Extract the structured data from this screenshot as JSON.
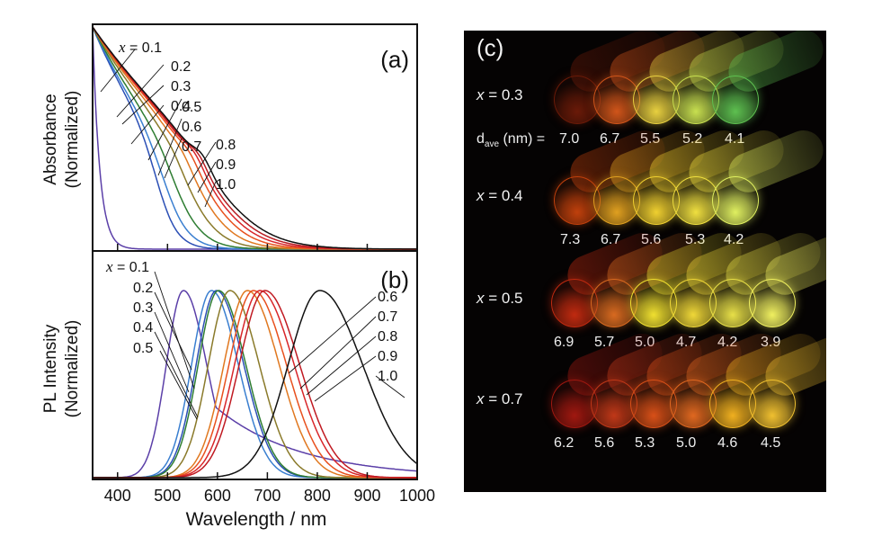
{
  "chart_data": [
    {
      "panel": "(a)",
      "type": "line",
      "title": "",
      "xlabel": "Wavelength / nm",
      "ylabel": "Absorbance (Normalized)",
      "xlim": [
        350,
        1000
      ],
      "ylim": [
        0,
        1
      ],
      "xticks": [
        400,
        500,
        600,
        700,
        800,
        900,
        1000
      ],
      "grid": false,
      "legend_prefix": "x =",
      "series": [
        {
          "name": "0.1",
          "color": "#5b3fa8",
          "edge_nm": 400,
          "shoulder": 0
        },
        {
          "name": "0.2",
          "color": "#2b4fb5",
          "edge_nm": 480,
          "shoulder": 0
        },
        {
          "name": "0.3",
          "color": "#3a7fd0",
          "edge_nm": 495,
          "shoulder": 0
        },
        {
          "name": "0.4",
          "color": "#2e7d32",
          "edge_nm": 515,
          "shoulder": 0.05
        },
        {
          "name": "0.5",
          "color": "#8a7a2a",
          "edge_nm": 540,
          "shoulder": 0.1
        },
        {
          "name": "0.6",
          "color": "#e07820",
          "edge_nm": 560,
          "shoulder": 0.15
        },
        {
          "name": "0.7",
          "color": "#e8501e",
          "edge_nm": 575,
          "shoulder": 0.2
        },
        {
          "name": "0.8",
          "color": "#d8262a",
          "edge_nm": 585,
          "shoulder": 0.25
        },
        {
          "name": "0.9",
          "color": "#b81c22",
          "edge_nm": 592,
          "shoulder": 0.28
        },
        {
          "name": "1.0",
          "color": "#111111",
          "edge_nm": 600,
          "shoulder": 0.3
        }
      ]
    },
    {
      "panel": "(b)",
      "type": "line",
      "title": "",
      "xlabel": "Wavelength / nm",
      "ylabel": "PL Intensity (Normalized)",
      "xlim": [
        350,
        1000
      ],
      "ylim": [
        0,
        1
      ],
      "xticks": [
        400,
        500,
        600,
        700,
        800,
        900,
        1000
      ],
      "grid": false,
      "legend_prefix": "x =",
      "series": [
        {
          "name": "0.1",
          "color": "#5b3fa8",
          "peak_nm": 532,
          "fwhm_nm": 95
        },
        {
          "name": "0.2",
          "color": "#3a7fd0",
          "peak_nm": 588,
          "fwhm_nm": 110
        },
        {
          "name": "0.3",
          "color": "#2b4fb5",
          "peak_nm": 598,
          "fwhm_nm": 112
        },
        {
          "name": "0.4",
          "color": "#2e7d32",
          "peak_nm": 602,
          "fwhm_nm": 112
        },
        {
          "name": "0.5",
          "color": "#8a7a2a",
          "peak_nm": 625,
          "fwhm_nm": 120
        },
        {
          "name": "0.6",
          "color": "#e07820",
          "peak_nm": 660,
          "fwhm_nm": 130
        },
        {
          "name": "0.7",
          "color": "#e8501e",
          "peak_nm": 672,
          "fwhm_nm": 135
        },
        {
          "name": "0.8",
          "color": "#d8262a",
          "peak_nm": 685,
          "fwhm_nm": 140
        },
        {
          "name": "0.9",
          "color": "#c01a22",
          "peak_nm": 695,
          "fwhm_nm": 142
        },
        {
          "name": "1.0",
          "color": "#111111",
          "peak_nm": 805,
          "fwhm_nm": 175
        }
      ]
    }
  ],
  "axis_labels": {
    "a_y1": "Absorbance",
    "a_y2": "(Normalized)",
    "b_y1": "PL Intensity",
    "b_y2": "(Normalized)",
    "x": "Wavelength / nm",
    "panel_a": "(a)",
    "panel_b": "(b)",
    "x_eq": "x",
    "eq_tail": " = 0.1"
  },
  "photo": {
    "panel": "(c)",
    "rows": [
      {
        "x_label": "x = 0.3",
        "d_prefix": "d",
        "d_sub": "ave",
        "d_unit": " (nm) = ",
        "sizes": [
          "7.0",
          "6.7",
          "5.5",
          "5.2",
          "4.1"
        ],
        "tube_colors": [
          "#6a1a08",
          "#d0551a",
          "#e8d040",
          "#c8e050",
          "#5ec050"
        ]
      },
      {
        "x_label": "x = 0.4",
        "sizes": [
          "7.3",
          "6.7",
          "5.6",
          "5.3",
          "4.2"
        ],
        "tube_colors": [
          "#c0400c",
          "#e0a020",
          "#f0d030",
          "#f0e040",
          "#e0f060"
        ]
      },
      {
        "x_label": "x = 0.5",
        "sizes": [
          "6.9",
          "5.7",
          "5.0",
          "4.7",
          "4.2",
          "3.9"
        ],
        "tube_colors": [
          "#c02a10",
          "#d86a20",
          "#f0e030",
          "#f0d838",
          "#e8e048",
          "#f0f060"
        ]
      },
      {
        "x_label": "x = 0.7",
        "sizes": [
          "6.2",
          "5.6",
          "5.3",
          "5.0",
          "4.6",
          "4.5"
        ],
        "tube_colors": [
          "#a01810",
          "#c03818",
          "#d85018",
          "#e06820",
          "#f0b020",
          "#f0c030"
        ]
      }
    ]
  }
}
